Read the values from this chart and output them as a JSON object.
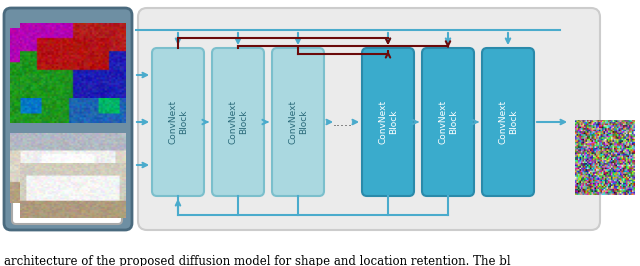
{
  "fig_width": 6.4,
  "fig_height": 2.66,
  "dpi": 100,
  "bg_color": "#ffffff",
  "caption": "architecture of the proposed diffusion model for shape and location retention. The bl",
  "caption_fontsize": 8.5,
  "left_panel_color": "#6e8fa3",
  "left_panel_border": "#4a6a7e",
  "main_panel_color": "#ebebeb",
  "main_panel_border": "#cccccc",
  "block_light_color": "#aad8e0",
  "block_dark_color": "#3aabcc",
  "block_border_light": "#7bbfcc",
  "block_border_dark": "#2a8aaa",
  "block_text_light": "#2a6a7a",
  "block_text_dark": "#ffffff",
  "arrow_blue": "#4aabcc",
  "arrow_dark_red": "#6b0a0a",
  "noise_seed": 7,
  "blocks": [
    {
      "label": "ConvNext\nBlock",
      "light": true
    },
    {
      "label": "ConvNext\nBlock",
      "light": true
    },
    {
      "label": "ConvNext\nBlock",
      "light": true
    },
    {
      "label": "ConvNext\nBlock",
      "light": false
    },
    {
      "label": "ConvNext\nBlock",
      "light": false
    },
    {
      "label": "ConvNext\nBlock",
      "light": false
    }
  ]
}
